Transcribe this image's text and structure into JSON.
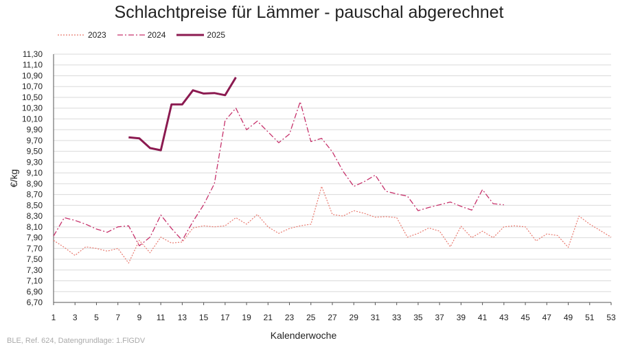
{
  "chart_data": {
    "type": "line",
    "title": "Schlachtpreise für Lämmer - pauschal abgerechnet",
    "xlabel": "Kalenderwoche",
    "ylabel": "€/kg",
    "xlim": [
      1,
      53
    ],
    "ylim": [
      6.7,
      11.3
    ],
    "y_ticks": [
      "11,30",
      "11,10",
      "10,90",
      "10,70",
      "10,50",
      "10,30",
      "10,10",
      "9,90",
      "9,70",
      "9,50",
      "9,30",
      "9,10",
      "8,90",
      "8,70",
      "8,50",
      "8,30",
      "8,10",
      "7,90",
      "7,70",
      "7,50",
      "7,30",
      "7,10",
      "6,90",
      "6,70"
    ],
    "x_ticks": [
      "1",
      "3",
      "5",
      "7",
      "9",
      "11",
      "13",
      "15",
      "17",
      "19",
      "21",
      "23",
      "25",
      "27",
      "29",
      "31",
      "33",
      "35",
      "37",
      "39",
      "41",
      "43",
      "45",
      "47",
      "49",
      "51",
      "53"
    ],
    "grid": "horizontal",
    "legend_position": "top-left",
    "series": [
      {
        "name": "2023",
        "color": "#e8776c",
        "style": "dotted",
        "x": [
          1,
          2,
          3,
          4,
          5,
          6,
          7,
          8,
          9,
          10,
          11,
          12,
          13,
          14,
          15,
          16,
          17,
          18,
          19,
          20,
          21,
          22,
          23,
          24,
          25,
          26,
          27,
          28,
          29,
          30,
          31,
          32,
          33,
          34,
          35,
          36,
          37,
          38,
          39,
          40,
          41,
          42,
          43,
          44,
          45,
          46,
          47,
          48,
          49,
          50,
          51,
          52,
          53
        ],
        "values": [
          7.85,
          7.72,
          7.57,
          7.73,
          7.7,
          7.65,
          7.7,
          7.43,
          7.85,
          7.62,
          7.91,
          7.8,
          7.82,
          8.08,
          8.12,
          8.1,
          8.12,
          8.27,
          8.15,
          8.33,
          8.1,
          7.98,
          8.07,
          8.12,
          8.15,
          8.85,
          8.33,
          8.3,
          8.4,
          8.35,
          8.28,
          8.29,
          8.27,
          7.91,
          7.98,
          8.08,
          8.02,
          7.73,
          8.11,
          7.9,
          8.02,
          7.9,
          8.1,
          8.12,
          8.1,
          7.84,
          7.97,
          7.94,
          7.72,
          8.3,
          8.15,
          8.03,
          7.91
        ]
      },
      {
        "name": "2024",
        "color": "#c6306a",
        "style": "dash-dot",
        "x": [
          1,
          2,
          3,
          4,
          5,
          6,
          7,
          8,
          9,
          10,
          11,
          12,
          13,
          14,
          15,
          16,
          17,
          18,
          19,
          20,
          21,
          22,
          23,
          24,
          25,
          26,
          27,
          28,
          29,
          30,
          31,
          32,
          33,
          34,
          35,
          36,
          37,
          38,
          39,
          40,
          41,
          42,
          43
        ],
        "values": [
          7.93,
          8.27,
          8.22,
          8.15,
          8.06,
          8.0,
          8.1,
          8.12,
          7.75,
          7.91,
          8.32,
          8.07,
          7.85,
          8.2,
          8.51,
          8.9,
          10.07,
          10.3,
          9.9,
          10.06,
          9.86,
          9.66,
          9.82,
          10.42,
          9.68,
          9.74,
          9.49,
          9.13,
          8.85,
          8.94,
          9.06,
          8.76,
          8.71,
          8.67,
          8.4,
          8.46,
          8.51,
          8.56,
          8.48,
          8.41,
          8.79,
          8.53,
          8.51
        ]
      },
      {
        "name": "2025",
        "color": "#8b1a50",
        "style": "solid",
        "x": [
          8,
          9,
          10,
          11,
          12,
          13,
          14,
          15,
          16,
          17,
          18
        ],
        "values": [
          9.76,
          9.74,
          9.56,
          9.52,
          10.37,
          10.37,
          10.63,
          10.57,
          10.58,
          10.54,
          10.87
        ]
      }
    ],
    "source": "BLE, Ref. 624, Datengrundlage: 1.FlGDV"
  }
}
